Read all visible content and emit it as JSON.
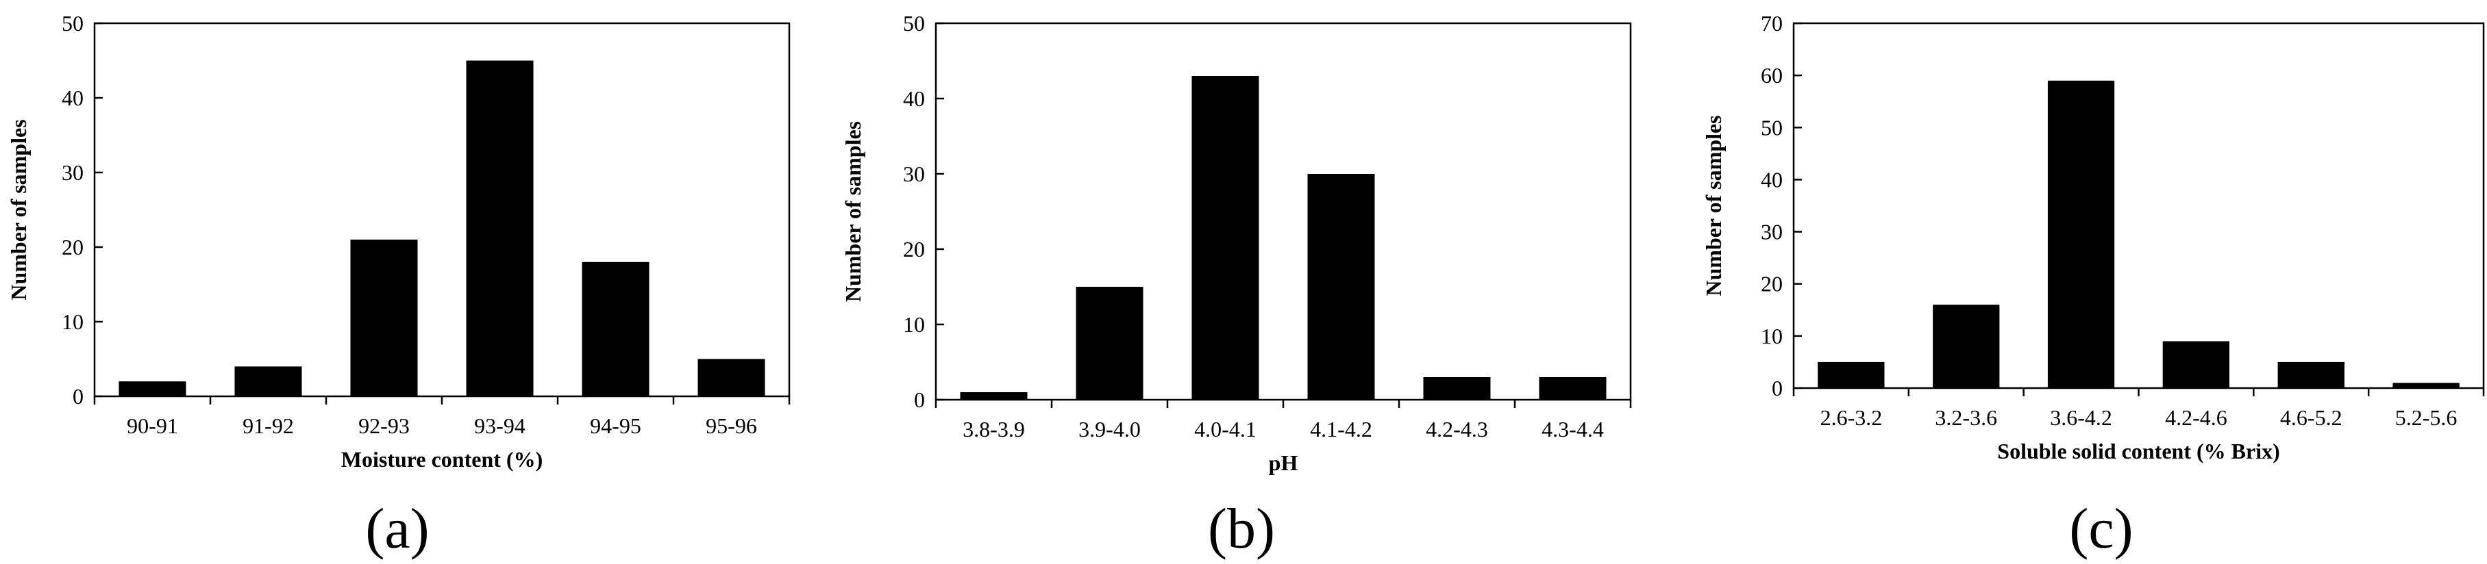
{
  "chart_data": [
    {
      "type": "bar",
      "panel_label": "(a)",
      "xlabel": "Moisture content (%)",
      "ylabel": "Number of samples",
      "ylim": [
        0,
        50
      ],
      "yticks": [
        0,
        10,
        20,
        30,
        40,
        50
      ],
      "categories": [
        "90-91",
        "91-92",
        "92-93",
        "93-94",
        "94-95",
        "95-96"
      ],
      "values": [
        2,
        4,
        21,
        45,
        18,
        5
      ],
      "bar_color": "#000000"
    },
    {
      "type": "bar",
      "panel_label": "(b)",
      "xlabel": "pH",
      "ylabel": "Number of samples",
      "ylim": [
        0,
        50
      ],
      "yticks": [
        0,
        10,
        20,
        30,
        40,
        50
      ],
      "categories": [
        "3.8-3.9",
        "3.9-4.0",
        "4.0-4.1",
        "4.1-4.2",
        "4.2-4.3",
        "4.3-4.4"
      ],
      "values": [
        1,
        15,
        43,
        30,
        3,
        3
      ],
      "bar_color": "#000000"
    },
    {
      "type": "bar",
      "panel_label": "(c)",
      "xlabel": "Soluble solid content (% Brix)",
      "ylabel": "Number of samples",
      "ylim": [
        0,
        70
      ],
      "yticks": [
        0,
        10,
        20,
        30,
        40,
        50,
        60,
        70
      ],
      "categories": [
        "2.6-3.2",
        "3.2-3.6",
        "3.6-4.2",
        "4.2-4.6",
        "4.6-5.2",
        "5.2-5.6"
      ],
      "values": [
        5,
        16,
        59,
        9,
        5,
        1
      ],
      "bar_color": "#000000"
    }
  ]
}
